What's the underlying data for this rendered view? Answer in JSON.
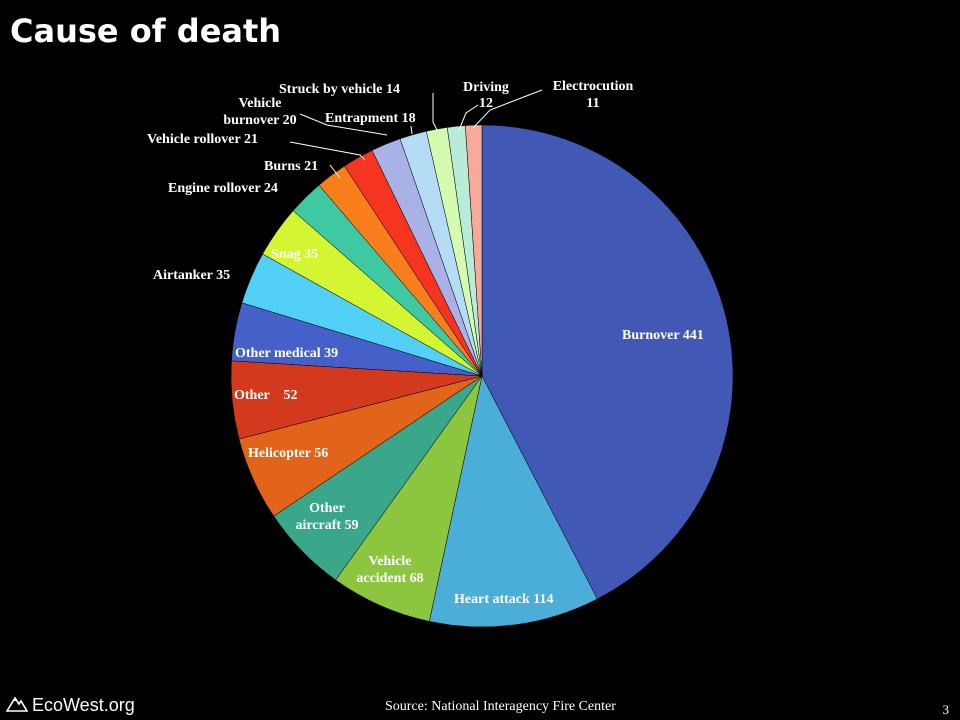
{
  "title": "Cause of death",
  "source": "Source:  National Interagency Fire Center",
  "page_number": "3",
  "brand": {
    "name": "EcoWest.org",
    "icon": "mountain-logo-icon"
  },
  "chart_data": {
    "type": "pie",
    "title": "Cause of death",
    "start": "12 o'clock, clockwise",
    "slices": [
      {
        "name": "Burnover",
        "value": 441,
        "color": "#4159b5",
        "label": "Burnover 441"
      },
      {
        "name": "Heart attack",
        "value": 114,
        "color": "#4aaed8",
        "label": "Heart attack 114"
      },
      {
        "name": "Vehicle accident",
        "value": 68,
        "color": "#8cc63f",
        "label": "Vehicle accident 68"
      },
      {
        "name": "Other aircraft",
        "value": 59,
        "color": "#3aa78a",
        "label": "Other aircraft 59"
      },
      {
        "name": "Helicopter",
        "value": 56,
        "color": "#e2631a",
        "label": "Helicopter 56"
      },
      {
        "name": "Other",
        "value": 52,
        "color": "#d33a1d",
        "label": "Other    52"
      },
      {
        "name": "Other medical",
        "value": 39,
        "color": "#4561c9",
        "label": "Other medical 39"
      },
      {
        "name": "Airtanker",
        "value": 35,
        "color": "#52d0f5",
        "label": "Airtanker 35"
      },
      {
        "name": "Snag",
        "value": 35,
        "color": "#d4f531",
        "label": "Snag 35"
      },
      {
        "name": "Engine rollover",
        "value": 24,
        "color": "#3ec9a3",
        "label": "Engine rollover 24"
      },
      {
        "name": "Burns",
        "value": 21,
        "color": "#fa7f1c",
        "label": "Burns 21"
      },
      {
        "name": "Vehicle rollover",
        "value": 21,
        "color": "#f5351f",
        "label": "Vehicle rollover 21"
      },
      {
        "name": "Vehicle burnover",
        "value": 20,
        "color": "#a9b1e6",
        "label": "Vehicle burnover 20"
      },
      {
        "name": "Entrapment",
        "value": 18,
        "color": "#b4dcf5",
        "label": "Entrapment 18"
      },
      {
        "name": "Struck by vehicle",
        "value": 14,
        "color": "#d4fbb0",
        "label": "Struck by vehicle 14"
      },
      {
        "name": "Driving",
        "value": 12,
        "color": "#b8ecd8",
        "label": "Driving 12"
      },
      {
        "name": "Electrocution",
        "value": 11,
        "color": "#f8a99a",
        "label": "Electrocution 11"
      }
    ]
  }
}
